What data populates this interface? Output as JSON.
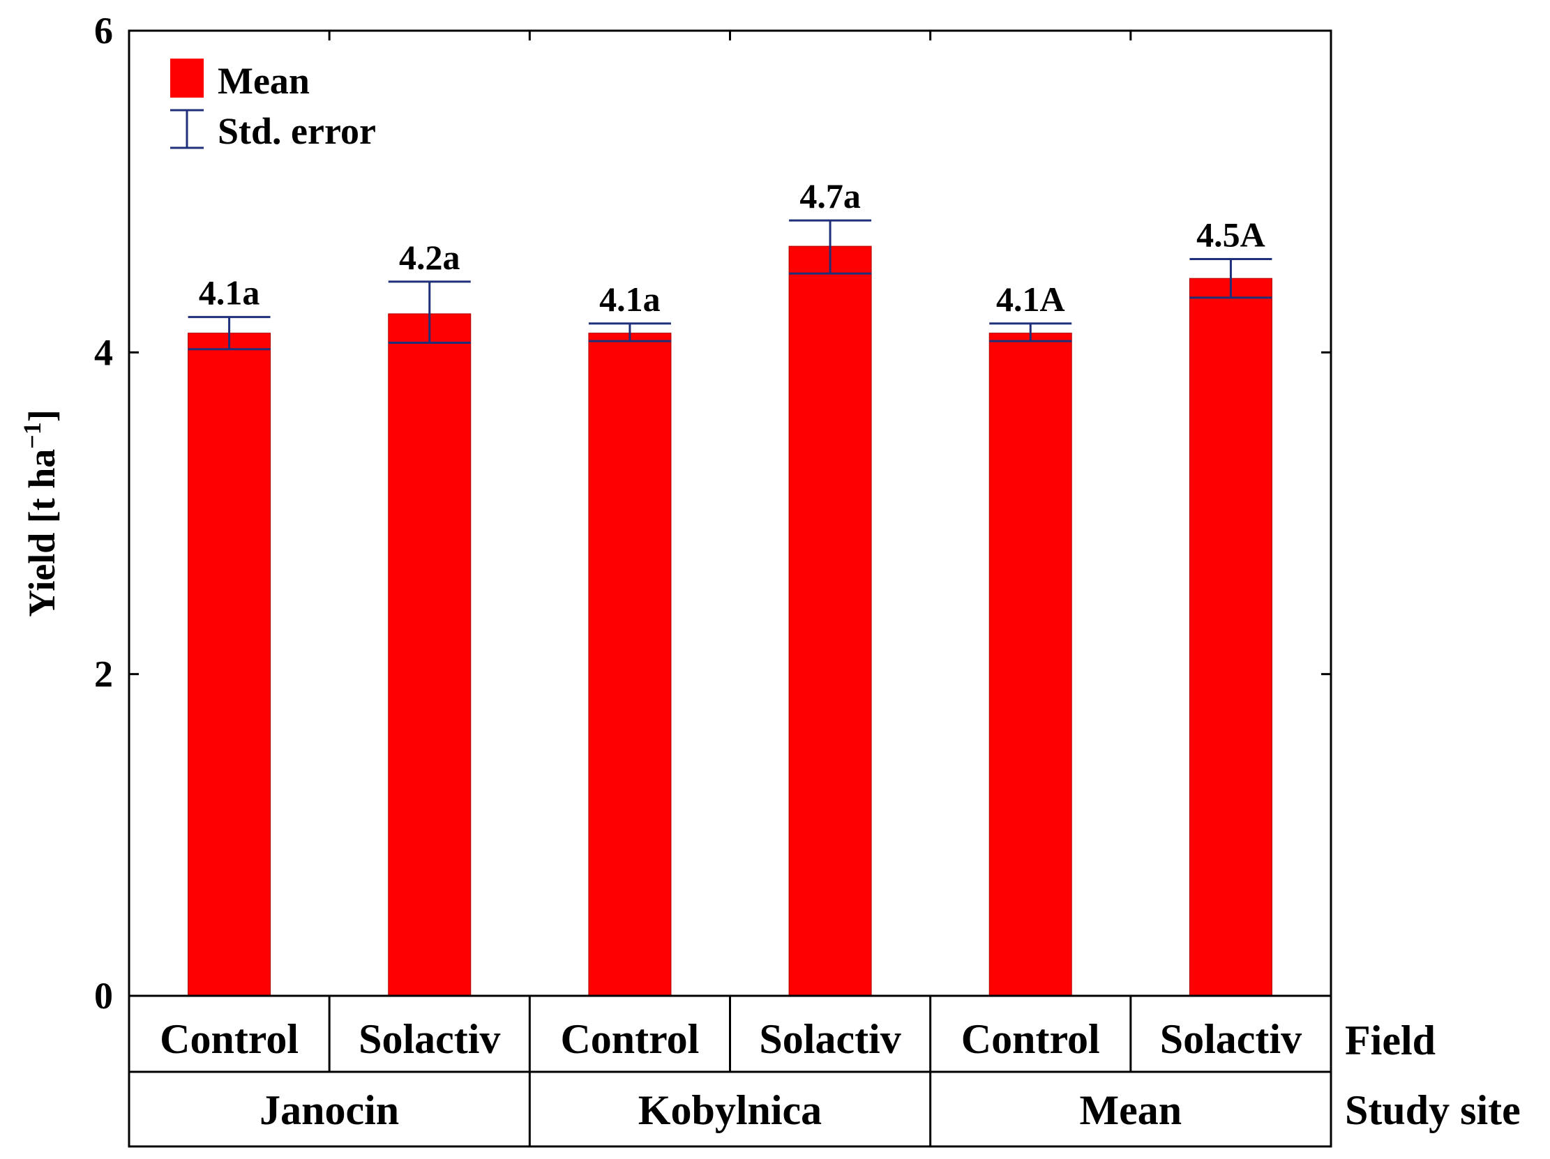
{
  "chart_data": {
    "type": "bar",
    "title": "",
    "xlabel": "",
    "ylabel": "Yield [t ha",
    "ylabel_superscript": "−1",
    "ylabel_close": "]",
    "ylim": [
      0,
      6
    ],
    "yticks": [
      "0",
      "2",
      "4",
      "6"
    ],
    "ytick_values": [
      0,
      2,
      4,
      6
    ],
    "categories": [
      "Control",
      "Solactiv",
      "Control",
      "Solactiv",
      "Control",
      "Solactiv"
    ],
    "groups": [
      "Janocin",
      "Kobylnica",
      "Mean"
    ],
    "row_labels": {
      "field": "Field",
      "site": "Study site"
    },
    "series": [
      {
        "name": "Mean",
        "values": [
          4.12,
          4.24,
          4.12,
          4.66,
          4.12,
          4.46
        ],
        "error_low": [
          4.02,
          4.06,
          4.07,
          4.49,
          4.07,
          4.34
        ],
        "error_high": [
          4.22,
          4.44,
          4.18,
          4.82,
          4.18,
          4.58
        ],
        "labels": [
          "4.1a",
          "4.2a",
          "4.1a",
          "4.7a",
          "4.1A",
          "4.5A"
        ]
      }
    ],
    "legend": {
      "position": "top-left",
      "mean_label": "Mean",
      "error_label": "Std. error"
    },
    "colors": {
      "bar": "#ff0000",
      "error": "#1f2f7a",
      "axis": "#000000"
    }
  }
}
